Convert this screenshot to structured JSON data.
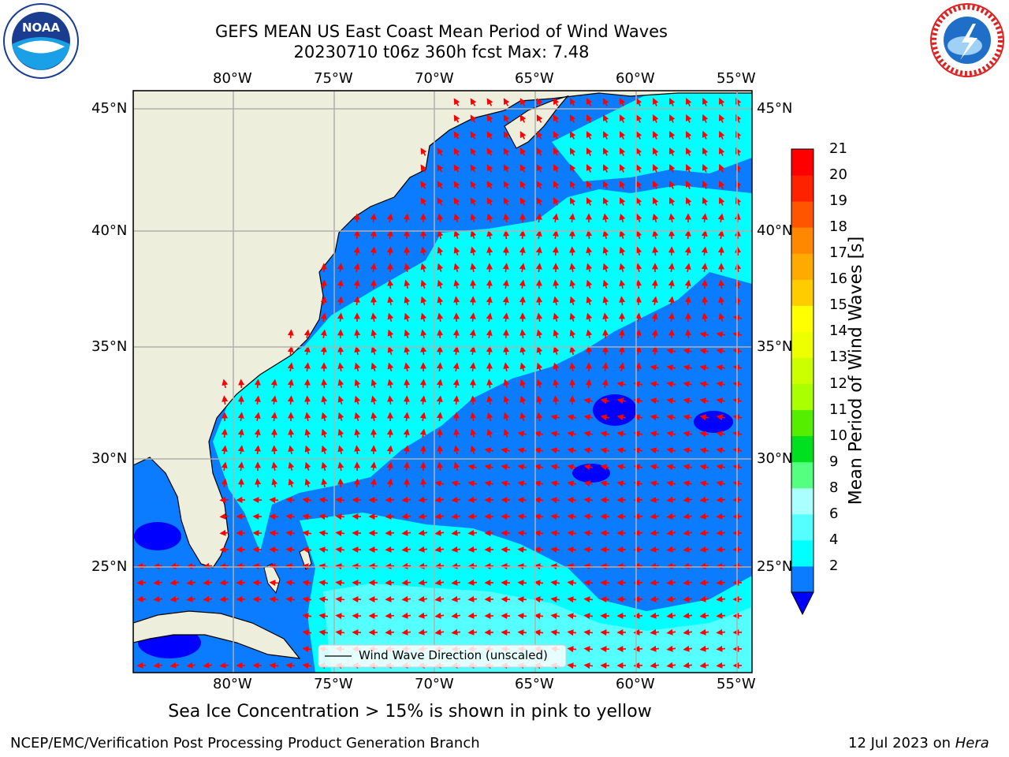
{
  "header": {
    "title_line1": "GEFS MEAN US East Coast Mean Period of Wind Waves",
    "title_line2": "20230710 t06z 360h fcst   Max: 7.48"
  },
  "logos": {
    "left": {
      "icon": "noaa-logo",
      "text": "NOAA"
    },
    "right": {
      "icon": "national-weather-service-logo",
      "text": "NATIONAL WEATHER SERVICE"
    }
  },
  "map": {
    "lon_labels": [
      "80°W",
      "75°W",
      "70°W",
      "65°W",
      "60°W",
      "55°W"
    ],
    "lat_labels": [
      "45°N",
      "40°N",
      "35°N",
      "30°N",
      "25°N"
    ],
    "extent": {
      "lon": [
        -85,
        -54.3
      ],
      "lat": [
        20.5,
        45.8
      ]
    },
    "legend_text": "Wind Wave Direction (unscaled)",
    "arrow_color": "#ff0000",
    "land_color": "#eeeedd",
    "colors": {
      "2-4": "#0b7bff",
      "4-6": "#00ffff",
      "6-8": "#55ffff",
      "below": "#0000ff"
    }
  },
  "colorbar": {
    "label": "Mean Period of Wind Waves [s]",
    "ticks": [
      "21",
      "20",
      "19",
      "18",
      "17",
      "16",
      "15",
      "14",
      "13",
      "12",
      "11",
      "10",
      "9",
      "8",
      "6",
      "4",
      "2"
    ],
    "colors_bottom_to_top": [
      "#0b7bff",
      "#00ffff",
      "#55ffff",
      "#aaffff",
      "#55ff80",
      "#00e020",
      "#55ee00",
      "#aaff00",
      "#ccff00",
      "#eeff00",
      "#ffff00",
      "#ffcc00",
      "#ffaa00",
      "#ff8800",
      "#ff5500",
      "#ff2200",
      "#ff0000"
    ]
  },
  "footer": {
    "sea_ice_note": "Sea Ice Concentration > 15% is shown in pink to yellow",
    "credit": "NCEP/EMC/Verification Post Processing Product Generation Branch",
    "date": "12 Jul 2023 on ",
    "machine": "Hera"
  }
}
